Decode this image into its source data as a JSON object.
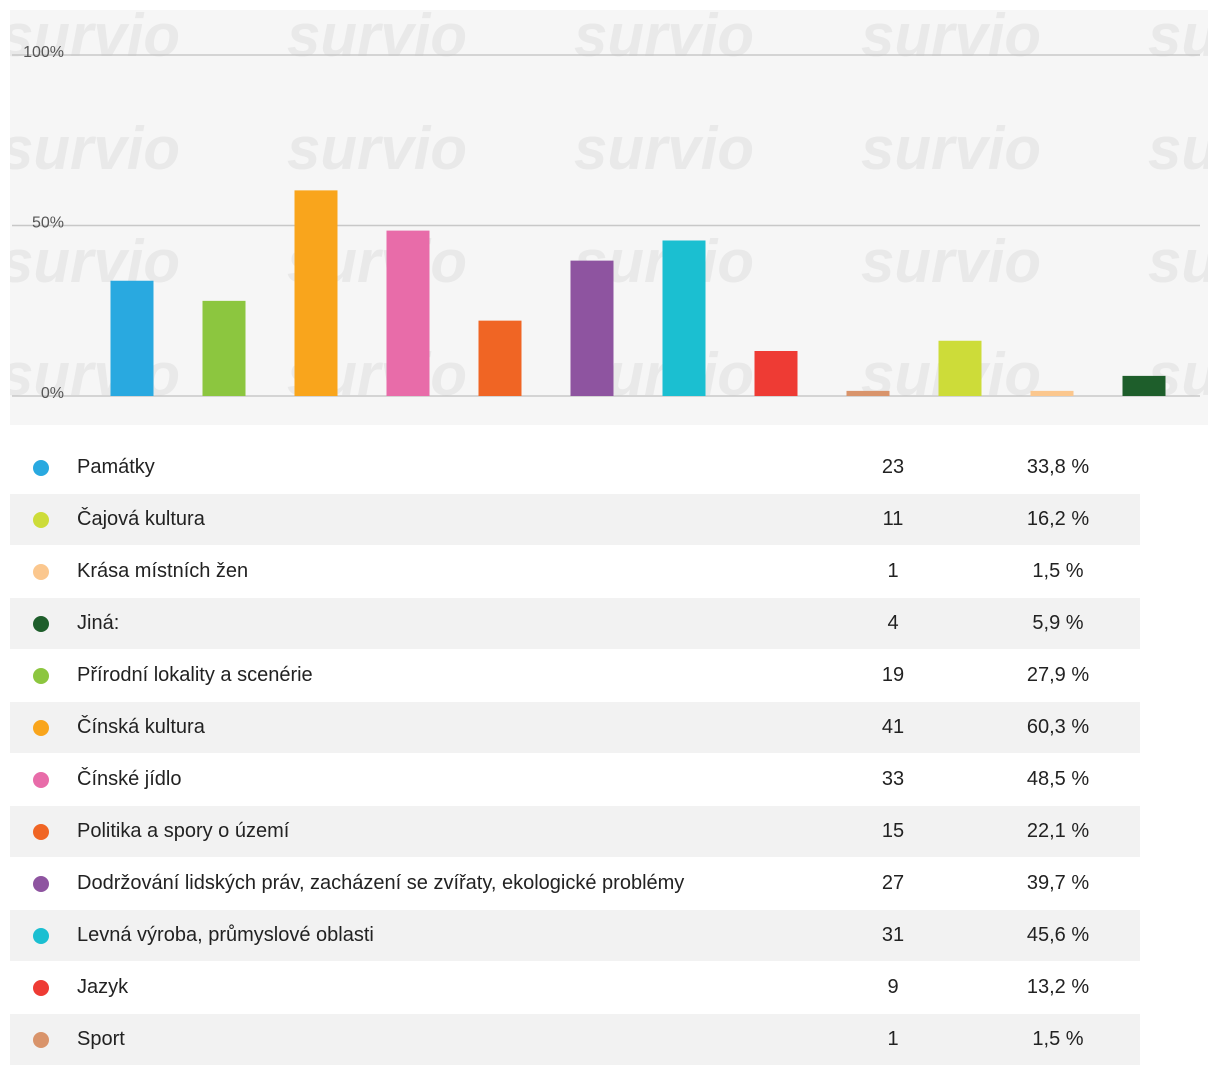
{
  "chart_data": {
    "type": "bar",
    "watermark": "survio",
    "categories": [
      null,
      null,
      null,
      null,
      null,
      null,
      null,
      null,
      null,
      null,
      null,
      null
    ],
    "values": [
      33.8,
      27.9,
      60.3,
      48.5,
      22.1,
      39.7,
      45.6,
      13.2,
      1.5,
      16.2,
      1.5,
      5.9
    ],
    "colors": [
      "#29a9e0",
      "#8cc63f",
      "#f9a51c",
      "#e86ca9",
      "#f06524",
      "#8e54a0",
      "#1bbfd1",
      "#ee3b34",
      "#d9946b",
      "#cddc39",
      "#fbc78e",
      "#1e5e2b"
    ],
    "ylim": [
      0,
      100
    ],
    "yticks": [
      {
        "value": 0,
        "label": "0%"
      },
      {
        "value": 50,
        "label": "50%"
      },
      {
        "value": 100,
        "label": "100%"
      }
    ],
    "grid": true
  },
  "table": {
    "rows": [
      {
        "color": "#29a9e0",
        "cells": [
          "Památky",
          "23",
          "33,8 %"
        ]
      },
      {
        "color": "#cddc39",
        "cells": [
          "Čajová kultura",
          "11",
          "16,2 %"
        ]
      },
      {
        "color": "#fbc78e",
        "cells": [
          "Krása místních žen",
          "1",
          "1,5 %"
        ]
      },
      {
        "color": "#1e5e2b",
        "cells": [
          "Jiná:",
          "4",
          "5,9 %"
        ]
      },
      {
        "color": "#8cc63f",
        "cells": [
          "Přírodní lokality a scenérie",
          "19",
          "27,9 %"
        ]
      },
      {
        "color": "#f9a51c",
        "cells": [
          "Čínská kultura",
          "41",
          "60,3 %"
        ]
      },
      {
        "color": "#e86ca9",
        "cells": [
          "Čínské jídlo",
          "33",
          "48,5 %"
        ]
      },
      {
        "color": "#f06524",
        "cells": [
          "Politika a spory o území",
          "15",
          "22,1 %"
        ]
      },
      {
        "color": "#8e54a0",
        "cells": [
          "Dodržování lidských práv, zacházení se zvířaty, ekologické problémy",
          "27",
          "39,7 %"
        ]
      },
      {
        "color": "#1bbfd1",
        "cells": [
          "Levná výroba, průmyslové oblasti",
          "31",
          "45,6 %"
        ]
      },
      {
        "color": "#ee3b34",
        "cells": [
          "Jazyk",
          "9",
          "13,2 %"
        ]
      },
      {
        "color": "#d9946b",
        "cells": [
          "Sport",
          "1",
          "1,5 %"
        ]
      }
    ]
  }
}
